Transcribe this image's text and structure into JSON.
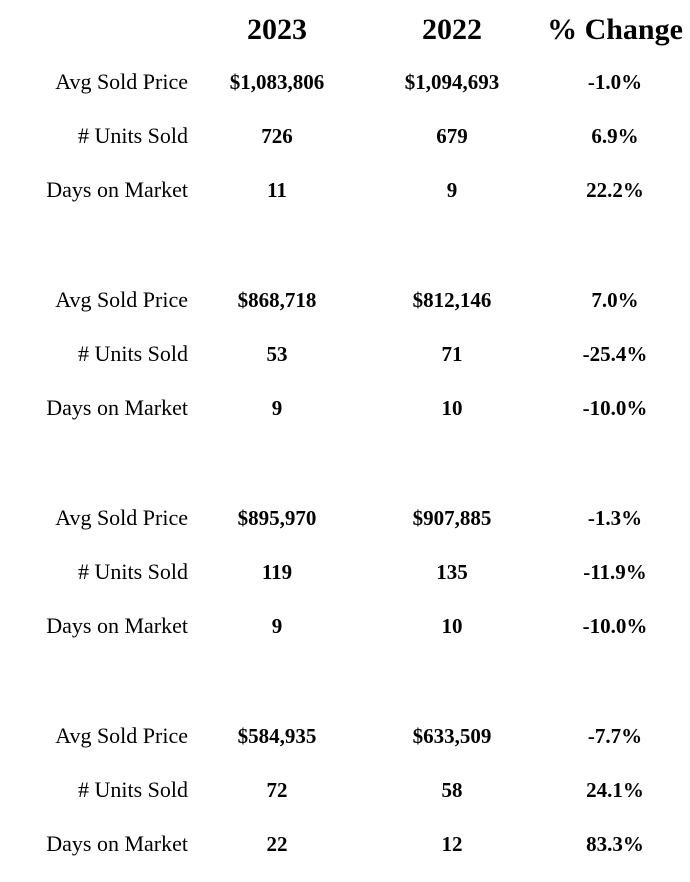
{
  "headers": {
    "col_2023": "2023",
    "col_2022": "2022",
    "col_change": "% Change"
  },
  "groups": [
    {
      "rows": [
        {
          "label": "Avg Sold Price",
          "v2023": "$1,083,806",
          "v2022": "$1,094,693",
          "change": "-1.0%"
        },
        {
          "label": "# Units Sold",
          "v2023": "726",
          "v2022": "679",
          "change": "6.9%"
        },
        {
          "label": "Days on Market",
          "v2023": "11",
          "v2022": "9",
          "change": "22.2%"
        }
      ]
    },
    {
      "rows": [
        {
          "label": "Avg Sold Price",
          "v2023": "$868,718",
          "v2022": "$812,146",
          "change": "7.0%"
        },
        {
          "label": "# Units Sold",
          "v2023": "53",
          "v2022": "71",
          "change": "-25.4%"
        },
        {
          "label": "Days on Market",
          "v2023": "9",
          "v2022": "10",
          "change": "-10.0%"
        }
      ]
    },
    {
      "rows": [
        {
          "label": "Avg Sold Price",
          "v2023": "$895,970",
          "v2022": "$907,885",
          "change": "-1.3%"
        },
        {
          "label": "# Units Sold",
          "v2023": "119",
          "v2022": "135",
          "change": "-11.9%"
        },
        {
          "label": "Days on Market",
          "v2023": "9",
          "v2022": "10",
          "change": "-10.0%"
        }
      ]
    },
    {
      "rows": [
        {
          "label": "Avg Sold Price",
          "v2023": "$584,935",
          "v2022": "$633,509",
          "change": "-7.7%"
        },
        {
          "label": "# Units Sold",
          "v2023": "72",
          "v2022": "58",
          "change": "24.1%"
        },
        {
          "label": "Days on Market",
          "v2023": "22",
          "v2022": "12",
          "change": "83.3%"
        }
      ]
    }
  ]
}
